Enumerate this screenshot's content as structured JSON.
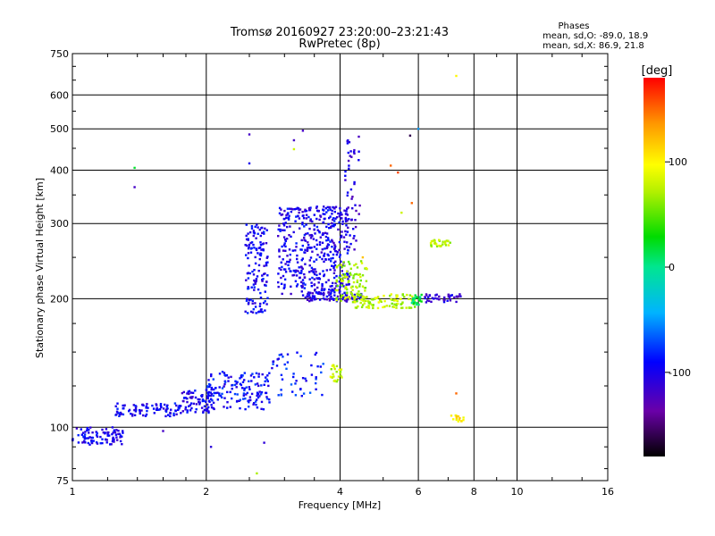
{
  "chart_data": {
    "type": "scatter",
    "title": "Tromsø 20160927 23:20:00–23:21:43",
    "subtitle": "RwPretec (8p)",
    "xlabel": "Frequency [MHz]",
    "ylabel": "Stationary phase Virtual Height [km]",
    "x_scale": "log",
    "y_scale": "log",
    "xlim": [
      1,
      16
    ],
    "ylim": [
      75,
      750
    ],
    "x_ticks": [
      1,
      2,
      4,
      6,
      8,
      10,
      16
    ],
    "x_tick_labels": [
      "1",
      "2",
      "4",
      "6",
      "8",
      "10",
      "16"
    ],
    "y_ticks": [
      75,
      100,
      200,
      300,
      400,
      500,
      600,
      750
    ],
    "y_tick_labels": [
      "75",
      "100",
      "200",
      "300",
      "400",
      "500",
      "600",
      "750"
    ],
    "grid": true,
    "stats": {
      "heading": "Phases",
      "line1": "mean, sd,O:  -89.0, 18.9",
      "line2": "mean, sd,X:  86.9, 21.8"
    },
    "colorbar": {
      "label": "[deg]",
      "range": [
        -180,
        180
      ],
      "ticks": [
        100,
        0,
        -100
      ],
      "tick_labels": [
        "100",
        "0",
        "-100"
      ]
    },
    "clusters": [
      {
        "name": "E",
        "x": [
          1.0,
          1.3
        ],
        "y": [
          91,
          100
        ],
        "phase": -100,
        "n": 90
      },
      {
        "name": "F1-low",
        "x": [
          1.25,
          1.75
        ],
        "y": [
          106,
          114
        ],
        "phase": -95,
        "n": 90
      },
      {
        "name": "E-trace-2",
        "x": [
          1.75,
          2.05
        ],
        "y": [
          108,
          122
        ],
        "phase": -100,
        "n": 70
      },
      {
        "name": "F-lower-trace",
        "x": [
          2.0,
          2.8
        ],
        "y": [
          110,
          135
        ],
        "phase": -90,
        "n": 150
      },
      {
        "name": "F-lower-trace-2",
        "x": [
          2.8,
          3.7
        ],
        "y": [
          118,
          150
        ],
        "phase": -85,
        "n": 50
      },
      {
        "name": "F2-blob-a",
        "x": [
          2.45,
          2.75
        ],
        "y": [
          185,
          300
        ],
        "phase": -95,
        "n": 140
      },
      {
        "name": "F2-blob-b",
        "x": [
          2.9,
          4.2
        ],
        "y": [
          205,
          330
        ],
        "phase": -100,
        "n": 450
      },
      {
        "name": "F2-cusp",
        "x": [
          4.1,
          4.45
        ],
        "y": [
          260,
          480
        ],
        "phase": -110,
        "n": 50
      },
      {
        "name": "F2-floor",
        "x": [
          3.3,
          4.5
        ],
        "y": [
          197,
          207
        ],
        "phase": -105,
        "n": 90
      },
      {
        "name": "X-yellow-a",
        "x": [
          3.9,
          4.6
        ],
        "y": [
          195,
          245
        ],
        "phase": 70,
        "n": 100
      },
      {
        "name": "X-yellow-b",
        "x": [
          4.3,
          5.9
        ],
        "y": [
          190,
          205
        ],
        "phase": 75,
        "n": 90
      },
      {
        "name": "X-green",
        "x": [
          5.8,
          6.1
        ],
        "y": [
          193,
          205
        ],
        "phase": 10,
        "n": 25
      },
      {
        "name": "X-tail",
        "x": [
          6.2,
          7.5
        ],
        "y": [
          196,
          205
        ],
        "phase": -110,
        "n": 40
      },
      {
        "name": "X-high",
        "x": [
          6.4,
          7.1
        ],
        "y": [
          265,
          275
        ],
        "phase": 75,
        "n": 30
      },
      {
        "name": "X-lower",
        "x": [
          3.8,
          4.05
        ],
        "y": [
          127,
          140
        ],
        "phase": 80,
        "n": 25
      },
      {
        "name": "X-low-right",
        "x": [
          7.1,
          7.6
        ],
        "y": [
          103,
          107
        ],
        "phase": 100,
        "n": 15
      }
    ],
    "isolated_points": [
      {
        "x": 1.38,
        "y": 405,
        "phase": 20
      },
      {
        "x": 1.38,
        "y": 365,
        "phase": -120
      },
      {
        "x": 2.5,
        "y": 485,
        "phase": -120
      },
      {
        "x": 2.5,
        "y": 415,
        "phase": -100
      },
      {
        "x": 3.3,
        "y": 495,
        "phase": -120
      },
      {
        "x": 3.15,
        "y": 470,
        "phase": -120
      },
      {
        "x": 3.15,
        "y": 448,
        "phase": 80
      },
      {
        "x": 5.2,
        "y": 410,
        "phase": 150
      },
      {
        "x": 5.4,
        "y": 395,
        "phase": 160
      },
      {
        "x": 5.75,
        "y": 482,
        "phase": -160
      },
      {
        "x": 6.0,
        "y": 500,
        "phase": -50
      },
      {
        "x": 7.3,
        "y": 665,
        "phase": 100
      },
      {
        "x": 5.5,
        "y": 318,
        "phase": 80
      },
      {
        "x": 5.8,
        "y": 335,
        "phase": 150
      },
      {
        "x": 4.5,
        "y": 250,
        "phase": 120
      },
      {
        "x": 7.3,
        "y": 120,
        "phase": 150
      },
      {
        "x": 2.05,
        "y": 90,
        "phase": -110
      },
      {
        "x": 2.7,
        "y": 92,
        "phase": -110
      },
      {
        "x": 2.6,
        "y": 78,
        "phase": 70
      },
      {
        "x": 1.6,
        "y": 98,
        "phase": -120
      }
    ]
  }
}
